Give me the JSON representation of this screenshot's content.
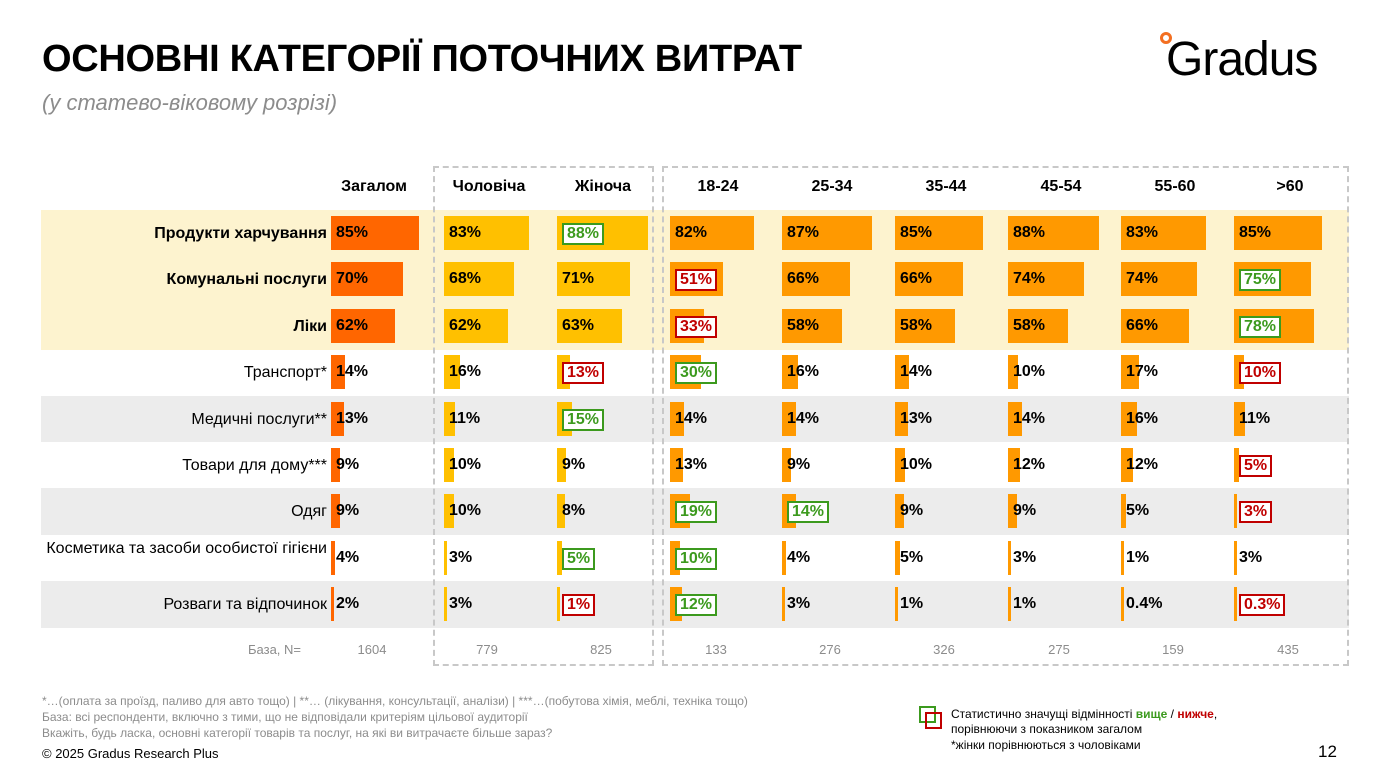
{
  "title": "ОСНОВНІ КАТЕГОРІЇ ПОТОЧНИХ ВИТРАТ",
  "subtitle": "(у статево-віковому розрізі)",
  "logo": {
    "text": "Gradus",
    "accent": "#f36f21"
  },
  "colors": {
    "total": "#ff6600",
    "gender": "#ffc000",
    "age": "#ff9900",
    "highlight_band": "#fdf3cf",
    "gray_band": "#ececec",
    "higher": "#3c9a1e",
    "lower": "#c00000"
  },
  "chart_data": {
    "type": "bar",
    "orientation": "horizontal",
    "columns": [
      "Загалом",
      "Чоловіча",
      "Жіноча",
      "18-24",
      "25-34",
      "35-44",
      "45-54",
      "55-60",
      ">60"
    ],
    "rows": [
      {
        "label": "Продукти харчування",
        "bold": true,
        "values": [
          85,
          83,
          88,
          82,
          87,
          85,
          88,
          83,
          85
        ],
        "labels": [
          "85%",
          "83%",
          "88%",
          "82%",
          "87%",
          "85%",
          "88%",
          "83%",
          "85%"
        ],
        "sig": [
          "",
          "",
          "up",
          "",
          "",
          "",
          "",
          "",
          ""
        ]
      },
      {
        "label": "Комунальні послуги",
        "bold": true,
        "values": [
          70,
          68,
          71,
          51,
          66,
          66,
          74,
          74,
          75
        ],
        "labels": [
          "70%",
          "68%",
          "71%",
          "51%",
          "66%",
          "66%",
          "74%",
          "74%",
          "75%"
        ],
        "sig": [
          "",
          "",
          "",
          "down",
          "",
          "",
          "",
          "",
          "up"
        ]
      },
      {
        "label": "Ліки",
        "bold": true,
        "values": [
          62,
          62,
          63,
          33,
          58,
          58,
          58,
          66,
          78
        ],
        "labels": [
          "62%",
          "62%",
          "63%",
          "33%",
          "58%",
          "58%",
          "58%",
          "66%",
          "78%"
        ],
        "sig": [
          "",
          "",
          "",
          "down",
          "",
          "",
          "",
          "",
          "up"
        ]
      },
      {
        "label": "Транспорт*",
        "bold": false,
        "values": [
          14,
          16,
          13,
          30,
          16,
          14,
          10,
          17,
          10
        ],
        "labels": [
          "14%",
          "16%",
          "13%",
          "30%",
          "16%",
          "14%",
          "10%",
          "17%",
          "10%"
        ],
        "sig": [
          "",
          "",
          "down",
          "up",
          "",
          "",
          "",
          "",
          "down"
        ]
      },
      {
        "label": "Медичні послуги**",
        "bold": false,
        "values": [
          13,
          11,
          15,
          14,
          14,
          13,
          14,
          16,
          11
        ],
        "labels": [
          "13%",
          "11%",
          "15%",
          "14%",
          "14%",
          "13%",
          "14%",
          "16%",
          "11%"
        ],
        "sig": [
          "",
          "",
          "up",
          "",
          "",
          "",
          "",
          "",
          ""
        ]
      },
      {
        "label": "Товари для дому***",
        "bold": false,
        "values": [
          9,
          10,
          9,
          13,
          9,
          10,
          12,
          12,
          5
        ],
        "labels": [
          "9%",
          "10%",
          "9%",
          "13%",
          "9%",
          "10%",
          "12%",
          "12%",
          "5%"
        ],
        "sig": [
          "",
          "",
          "",
          "",
          "",
          "",
          "",
          "",
          "down"
        ]
      },
      {
        "label": "Одяг",
        "bold": false,
        "values": [
          9,
          10,
          8,
          19,
          14,
          9,
          9,
          5,
          3
        ],
        "labels": [
          "9%",
          "10%",
          "8%",
          "19%",
          "14%",
          "9%",
          "9%",
          "5%",
          "3%"
        ],
        "sig": [
          "",
          "",
          "",
          "up",
          "up",
          "",
          "",
          "",
          "down"
        ]
      },
      {
        "label": "Косметика та засоби особистої гігієни",
        "bold": false,
        "values": [
          4,
          3,
          5,
          10,
          4,
          5,
          3,
          1,
          3
        ],
        "labels": [
          "4%",
          "3%",
          "5%",
          "10%",
          "4%",
          "5%",
          "3%",
          "1%",
          "3%"
        ],
        "sig": [
          "",
          "",
          "up",
          "up",
          "",
          "",
          "",
          "",
          ""
        ]
      },
      {
        "label": "Розваги та відпочинок",
        "bold": false,
        "values": [
          2,
          3,
          1,
          12,
          3,
          1,
          1,
          0.4,
          0.3
        ],
        "labels": [
          "2%",
          "3%",
          "1%",
          "12%",
          "3%",
          "1%",
          "1%",
          "0.4%",
          "0.3%"
        ],
        "sig": [
          "",
          "",
          "down",
          "up",
          "",
          "",
          "",
          "",
          "down"
        ]
      }
    ],
    "base_label": "База, N=",
    "base": [
      "1604",
      "779",
      "825",
      "133",
      "276",
      "326",
      "275",
      "159",
      "435"
    ]
  },
  "footnotes": {
    "line1": "*…(оплата за проїзд, паливо для авто тощо) | **… (лікування, консультації, аналізи) | ***…(побутова хімія, меблі, техніка тощо)",
    "line2": "База: всі респонденти, включно з тими, що не відповідали критеріям цільової аудиторії",
    "line3": "Вкажіть, будь ласка, основні  категорії товарів та послуг, на які ви витрачаєте більше зараз?"
  },
  "legend": {
    "text_a": "Статистично значущі відмінності ",
    "higher": "вище",
    "sep": " / ",
    "lower": "нижче",
    "text_b": ",",
    "line2": "порівнюючи з показником загалом",
    "line3": "*жінки порівнюються з чоловіками"
  },
  "copyright": "© 2025 Gradus Research Plus",
  "page_number": "12"
}
